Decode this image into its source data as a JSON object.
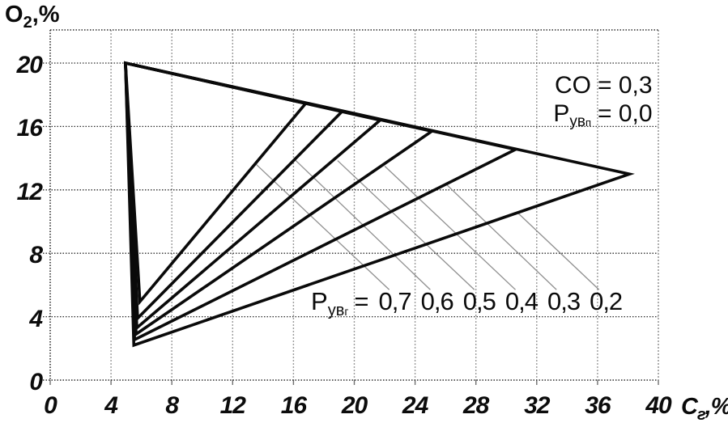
{
  "figure": {
    "y_axis": {
      "title_base": "O",
      "title_sub": "2",
      "title_suffix": ",%",
      "ticks": [
        0,
        4,
        8,
        12,
        16,
        20
      ]
    },
    "x_axis": {
      "title_base": "C",
      "title_sub": "г",
      "title_suffix": ",%",
      "ticks": [
        0,
        4,
        8,
        12,
        16,
        20,
        24,
        28,
        32,
        36,
        40
      ]
    },
    "annotation": {
      "line1_name": "CO",
      "line1_eq": "=",
      "line1_value": "0,3",
      "line2_name_base": "Р",
      "line2_name_sub1": "ув",
      "line2_name_sub2": "п",
      "line2_eq": "=",
      "line2_value": "0,0"
    },
    "curve_label": {
      "base": "Р",
      "sub1": "ув",
      "sub2": "г",
      "eq": "=",
      "values": [
        "0,7",
        "0,6",
        "0,5",
        "0,4",
        "0,3",
        "0,2"
      ]
    }
  },
  "chart_data": {
    "type": "line",
    "xlabel": "Cг,%",
    "ylabel": "O2,%",
    "xlim": [
      0,
      40
    ],
    "ylim": [
      0,
      20
    ],
    "xticks": [
      0,
      4,
      8,
      12,
      16,
      20,
      24,
      28,
      32,
      36,
      40
    ],
    "yticks": [
      0,
      4,
      8,
      12,
      16,
      20
    ],
    "grid": true,
    "annotations": [
      "CO = 0,3",
      "Рувп = 0,0"
    ],
    "series": [
      {
        "name": "Рувг = 0,7",
        "apex": [
          4.95,
          20
        ],
        "right_vertex": [
          16.8,
          17.45
        ],
        "bottom_vertex": [
          5.9,
          4.95
        ]
      },
      {
        "name": "Рувг = 0,6",
        "apex": [
          4.95,
          20
        ],
        "right_vertex": [
          19.2,
          16.95
        ],
        "bottom_vertex": [
          5.75,
          3.9
        ]
      },
      {
        "name": "Рувг = 0,5",
        "apex": [
          4.95,
          20
        ],
        "right_vertex": [
          21.7,
          16.4
        ],
        "bottom_vertex": [
          5.7,
          3.3
        ]
      },
      {
        "name": "Рувг = 0,4",
        "apex": [
          4.95,
          20
        ],
        "right_vertex": [
          25.1,
          15.7
        ],
        "bottom_vertex": [
          5.65,
          2.9
        ]
      },
      {
        "name": "Рувг = 0,3",
        "apex": [
          4.95,
          20
        ],
        "right_vertex": [
          30.6,
          14.55
        ],
        "bottom_vertex": [
          5.55,
          2.55
        ]
      },
      {
        "name": "Рувг = 0,2",
        "apex": [
          4.95,
          20
        ],
        "right_vertex": [
          38.1,
          13.0
        ],
        "bottom_vertex": [
          5.5,
          2.2
        ]
      }
    ],
    "leader_lines": [
      {
        "label": "0,7",
        "from_curve": [
          13.5,
          13.65
        ],
        "to_label": [
          22.3,
          5.7
        ]
      },
      {
        "label": "0,6",
        "from_curve": [
          16.1,
          13.9
        ],
        "to_label": [
          25.0,
          5.7
        ]
      },
      {
        "label": "0,5",
        "from_curve": [
          18.9,
          13.85
        ],
        "to_label": [
          27.9,
          5.7
        ]
      },
      {
        "label": "0,4",
        "from_curve": [
          22.0,
          13.5
        ],
        "to_label": [
          30.6,
          5.7
        ]
      },
      {
        "label": "0,3",
        "from_curve": [
          26.0,
          12.4
        ],
        "to_label": [
          33.3,
          5.7
        ]
      },
      {
        "label": "0,2",
        "from_curve": [
          30.7,
          10.6
        ],
        "to_label": [
          36.1,
          5.7
        ]
      }
    ]
  }
}
